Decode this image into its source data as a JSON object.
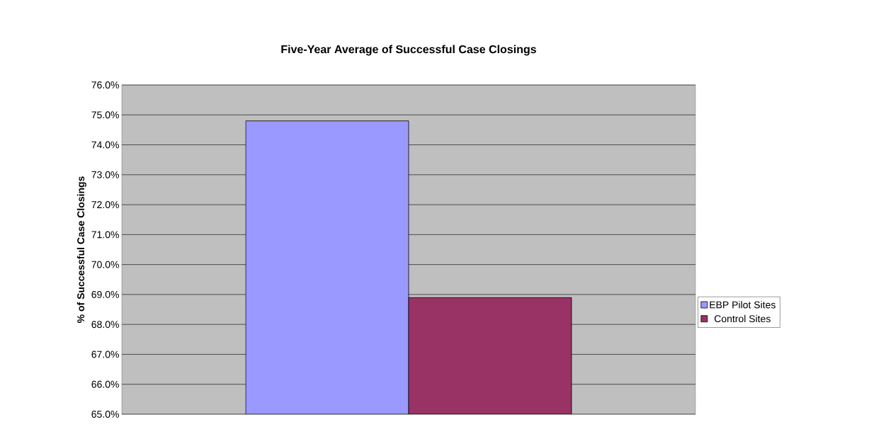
{
  "chart_data": {
    "type": "bar",
    "title": "Five-Year Average of Successful Case Closings",
    "ylabel": "% of Successful Case Closings",
    "categories": [
      null
    ],
    "series": [
      {
        "name": "EBP Pilot Sites",
        "color": "#9999ff",
        "values": [
          74.8
        ]
      },
      {
        "name": "Control Sites",
        "color": "#993366",
        "values": [
          68.9
        ]
      }
    ],
    "ylim": [
      65,
      76
    ],
    "yticks": [
      {
        "value": 65,
        "label": "65.0%"
      },
      {
        "value": 66,
        "label": "66.0%"
      },
      {
        "value": 67,
        "label": "67.0%"
      },
      {
        "value": 68,
        "label": "68.0%"
      },
      {
        "value": 69,
        "label": "69.0%"
      },
      {
        "value": 70,
        "label": "70.0%"
      },
      {
        "value": 71,
        "label": "71.0%"
      },
      {
        "value": 72,
        "label": "72.0%"
      },
      {
        "value": 73,
        "label": "73.0%"
      },
      {
        "value": 74,
        "label": "74.0%"
      },
      {
        "value": 75,
        "label": "75.0%"
      },
      {
        "value": 76,
        "label": "76.0%"
      }
    ],
    "grid": "y",
    "legend": "right"
  }
}
